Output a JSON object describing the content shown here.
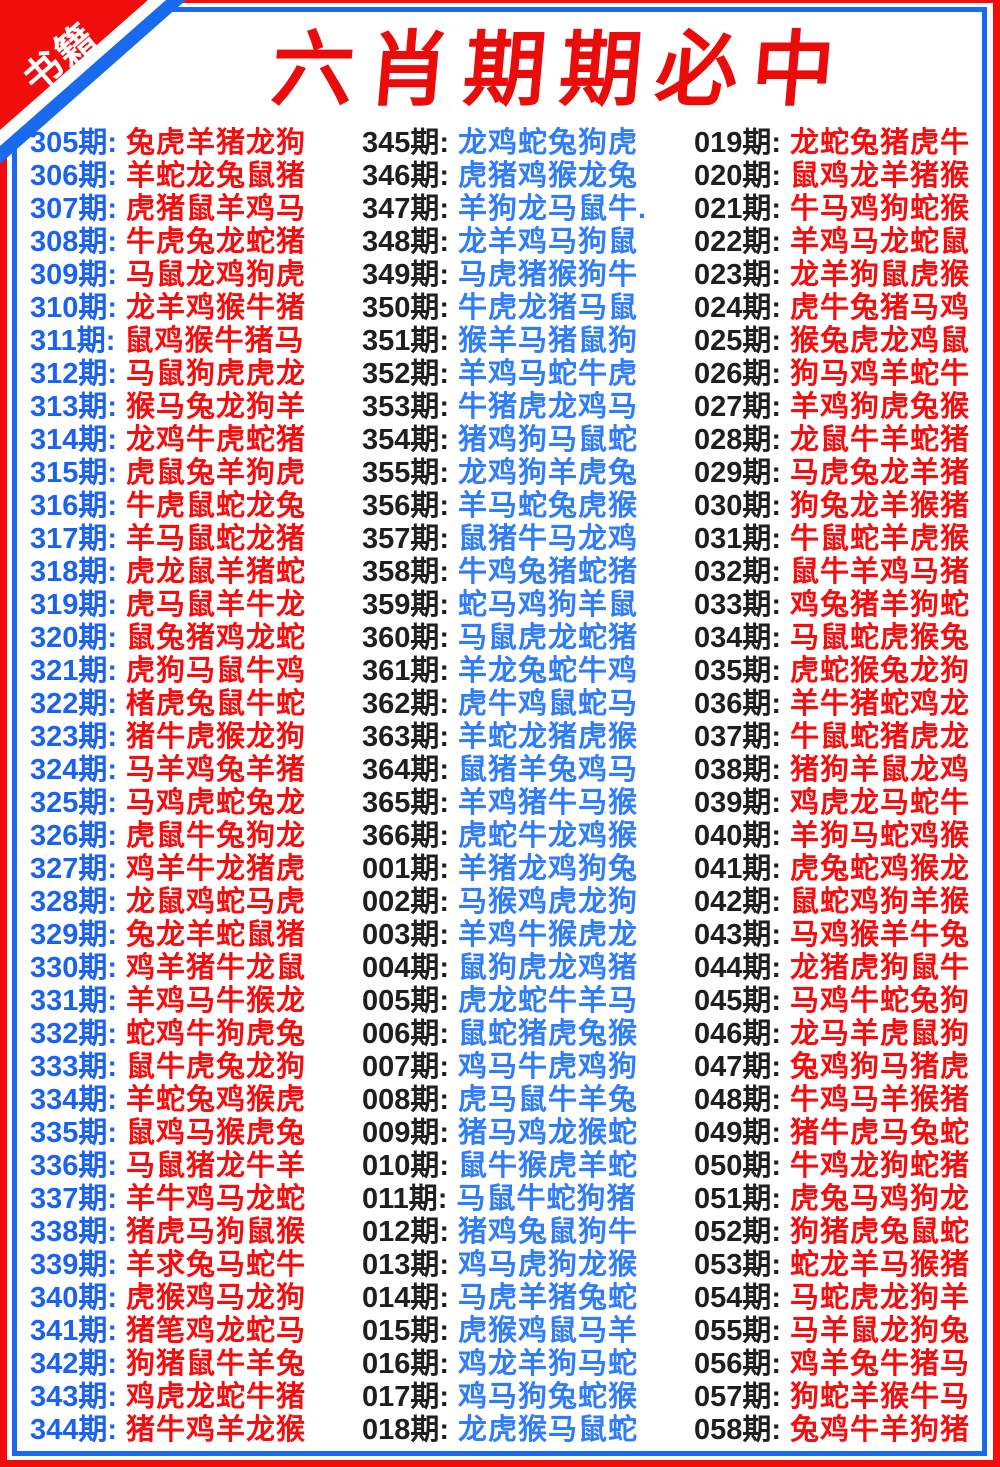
{
  "corner_badge": {
    "label": "书籍"
  },
  "title": "六肖期期必中",
  "colors": {
    "outer_border_red": "#f20d0d",
    "inner_border_blue": "#1a6af0",
    "title_red": "#ea0b0b",
    "badge_background": "#f20d0d",
    "badge_text": "#ffffff",
    "period_blue": "#1b63ef",
    "period_black": "#1f1f1f",
    "animal_red": "#f70d0d",
    "animal_blue": "#2f7dfb"
  },
  "columns": [
    {
      "name": "column-1",
      "label_color": "#1b63ef",
      "animal_color": "#f70d0d",
      "rows": [
        {
          "period": "305期:",
          "animals": "兔虎羊猪龙狗"
        },
        {
          "period": "306期:",
          "animals": "羊蛇龙兔鼠猪"
        },
        {
          "period": "307期:",
          "animals": "虎猪鼠羊鸡马"
        },
        {
          "period": "308期:",
          "animals": "牛虎兔龙蛇猪"
        },
        {
          "period": "309期:",
          "animals": "马鼠龙鸡狗虎"
        },
        {
          "period": "310期:",
          "animals": "龙羊鸡猴牛猪"
        },
        {
          "period": "311期:",
          "animals": "鼠鸡猴牛猪马"
        },
        {
          "period": "312期:",
          "animals": "马鼠狗虎虎龙"
        },
        {
          "period": "313期:",
          "animals": "猴马兔龙狗羊"
        },
        {
          "period": "314期:",
          "animals": "龙鸡牛虎蛇猪"
        },
        {
          "period": "315期:",
          "animals": "虎鼠兔羊狗虎"
        },
        {
          "period": "316期:",
          "animals": "牛虎鼠蛇龙兔"
        },
        {
          "period": "317期:",
          "animals": "羊马鼠蛇龙猪"
        },
        {
          "period": "318期:",
          "animals": "虎龙鼠羊猪蛇"
        },
        {
          "period": "319期:",
          "animals": "虎马鼠羊牛龙"
        },
        {
          "period": "320期:",
          "animals": "鼠兔猪鸡龙蛇"
        },
        {
          "period": "321期:",
          "animals": "虎狗马鼠牛鸡"
        },
        {
          "period": "322期:",
          "animals": "楮虎兔鼠牛蛇"
        },
        {
          "period": "323期:",
          "animals": "猪牛虎猴龙狗"
        },
        {
          "period": "324期:",
          "animals": "马羊鸡兔羊猪"
        },
        {
          "period": "325期:",
          "animals": "马鸡虎蛇兔龙"
        },
        {
          "period": "326期:",
          "animals": "虎鼠牛兔狗龙"
        },
        {
          "period": "327期:",
          "animals": "鸡羊牛龙猪虎"
        },
        {
          "period": "328期:",
          "animals": "龙鼠鸡蛇马虎"
        },
        {
          "period": "329期:",
          "animals": "兔龙羊蛇鼠猪"
        },
        {
          "period": "330期:",
          "animals": "鸡羊猪牛龙鼠"
        },
        {
          "period": "331期:",
          "animals": "羊鸡马牛猴龙"
        },
        {
          "period": "332期:",
          "animals": "蛇鸡牛狗虎兔"
        },
        {
          "period": "333期:",
          "animals": "鼠牛虎兔龙狗"
        },
        {
          "period": "334期:",
          "animals": "羊蛇兔鸡猴虎"
        },
        {
          "period": "335期:",
          "animals": "鼠鸡马猴虎兔"
        },
        {
          "period": "336期:",
          "animals": "马鼠猪龙牛羊"
        },
        {
          "period": "337期:",
          "animals": "羊牛鸡马龙蛇"
        },
        {
          "period": "338期:",
          "animals": "猪虎马狗鼠猴"
        },
        {
          "period": "339期:",
          "animals": "羊求兔马蛇牛"
        },
        {
          "period": "340期:",
          "animals": "虎猴鸡马龙狗"
        },
        {
          "period": "341期:",
          "animals": "猪笔鸡龙蛇马"
        },
        {
          "period": "342期:",
          "animals": "狗猪鼠牛羊兔"
        },
        {
          "period": "343期:",
          "animals": "鸡虎龙蛇牛猪"
        },
        {
          "period": "344期:",
          "animals": "猪牛鸡羊龙猴"
        }
      ]
    },
    {
      "name": "column-2",
      "label_color": "#1f1f1f",
      "animal_color": "#2f7dfb",
      "rows": [
        {
          "period": "345期:",
          "animals": "龙鸡蛇兔狗虎"
        },
        {
          "period": "346期:",
          "animals": "虎猪鸡猴龙兔"
        },
        {
          "period": "347期:",
          "animals": "羊狗龙马鼠牛."
        },
        {
          "period": "348期:",
          "animals": "龙羊鸡马狗鼠"
        },
        {
          "period": "349期:",
          "animals": "马虎猪猴狗牛"
        },
        {
          "period": "350期:",
          "animals": "牛虎龙猪马鼠"
        },
        {
          "period": "351期:",
          "animals": "猴羊马猪鼠狗"
        },
        {
          "period": "352期:",
          "animals": "羊鸡马蛇牛虎"
        },
        {
          "period": "353期:",
          "animals": "牛猪虎龙鸡马"
        },
        {
          "period": "354期:",
          "animals": "猪鸡狗马鼠蛇"
        },
        {
          "period": "355期:",
          "animals": "龙鸡狗羊虎兔"
        },
        {
          "period": "356期:",
          "animals": "羊马蛇兔虎猴"
        },
        {
          "period": "357期:",
          "animals": "鼠猪牛马龙鸡"
        },
        {
          "period": "358期:",
          "animals": "牛鸡兔猪蛇猪"
        },
        {
          "period": "359期:",
          "animals": "蛇马鸡狗羊鼠"
        },
        {
          "period": "360期:",
          "animals": "马鼠虎龙蛇猪"
        },
        {
          "period": "361期:",
          "animals": "羊龙兔蛇牛鸡"
        },
        {
          "period": "362期:",
          "animals": "虎牛鸡鼠蛇马"
        },
        {
          "period": "363期:",
          "animals": "羊蛇龙猪虎猴"
        },
        {
          "period": "364期:",
          "animals": "鼠猪羊兔鸡马"
        },
        {
          "period": "365期:",
          "animals": "羊鸡猪牛马猴"
        },
        {
          "period": "366期:",
          "animals": "虎蛇牛龙鸡猴"
        },
        {
          "period": "001期:",
          "animals": "羊猪龙鸡狗兔"
        },
        {
          "period": "002期:",
          "animals": "马猴鸡虎龙狗"
        },
        {
          "period": "003期:",
          "animals": "羊鸡牛猴虎龙"
        },
        {
          "period": "004期:",
          "animals": "鼠狗虎龙鸡猪"
        },
        {
          "period": "005期:",
          "animals": "虎龙蛇牛羊马"
        },
        {
          "period": "006期:",
          "animals": "鼠蛇猪虎兔猴"
        },
        {
          "period": "007期:",
          "animals": "鸡马牛虎鸡狗"
        },
        {
          "period": "008期:",
          "animals": "虎马鼠牛羊兔"
        },
        {
          "period": "009期:",
          "animals": "猪马鸡龙猴蛇"
        },
        {
          "period": "010期:",
          "animals": "鼠牛猴虎羊蛇"
        },
        {
          "period": "011期:",
          "animals": "马鼠牛蛇狗猪"
        },
        {
          "period": "012期:",
          "animals": "猪鸡兔鼠狗牛"
        },
        {
          "period": "013期:",
          "animals": "鸡马虎狗龙猴"
        },
        {
          "period": "014期:",
          "animals": "马虎羊猪兔蛇"
        },
        {
          "period": "015期:",
          "animals": "虎猴鸡鼠马羊"
        },
        {
          "period": "016期:",
          "animals": "鸡龙羊狗马蛇"
        },
        {
          "period": "017期:",
          "animals": "鸡马狗兔蛇猴"
        },
        {
          "period": "018期:",
          "animals": "龙虎猴马鼠蛇"
        }
      ]
    },
    {
      "name": "column-3",
      "label_color": "#1f1f1f",
      "animal_color": "#f70d0d",
      "rows": [
        {
          "period": "019期:",
          "animals": "龙蛇兔猪虎牛"
        },
        {
          "period": "020期:",
          "animals": "鼠鸡龙羊猪猴"
        },
        {
          "period": "021期:",
          "animals": "牛马鸡狗蛇猴"
        },
        {
          "period": "022期:",
          "animals": "羊鸡马龙蛇鼠"
        },
        {
          "period": "023期:",
          "animals": "龙羊狗鼠虎猴"
        },
        {
          "period": "024期:",
          "animals": "虎牛兔猪马鸡"
        },
        {
          "period": "025期:",
          "animals": "猴兔虎龙鸡鼠"
        },
        {
          "period": "026期:",
          "animals": "狗马鸡羊蛇牛"
        },
        {
          "period": "027期:",
          "animals": "羊鸡狗虎兔猴"
        },
        {
          "period": "028期:",
          "animals": "龙鼠牛羊蛇猪"
        },
        {
          "period": "029期:",
          "animals": "马虎兔龙羊猪"
        },
        {
          "period": "030期:",
          "animals": "狗兔龙羊猴猪"
        },
        {
          "period": "031期:",
          "animals": "牛鼠蛇羊虎猴"
        },
        {
          "period": "032期:",
          "animals": "鼠牛羊鸡马猪"
        },
        {
          "period": "033期:",
          "animals": "鸡兔猪羊狗蛇"
        },
        {
          "period": "034期:",
          "animals": "马鼠蛇虎猴兔"
        },
        {
          "period": "035期:",
          "animals": "虎蛇猴兔龙狗"
        },
        {
          "period": "036期:",
          "animals": "羊牛猪蛇鸡龙"
        },
        {
          "period": "037期:",
          "animals": "牛鼠蛇猪虎龙"
        },
        {
          "period": "038期:",
          "animals": "猪狗羊鼠龙鸡"
        },
        {
          "period": "039期:",
          "animals": "鸡虎龙马蛇牛"
        },
        {
          "period": "040期:",
          "animals": "羊狗马蛇鸡猴"
        },
        {
          "period": "041期:",
          "animals": "虎兔蛇鸡猴龙"
        },
        {
          "period": "042期:",
          "animals": "鼠蛇鸡狗羊猴"
        },
        {
          "period": "043期:",
          "animals": "马鸡猴羊牛兔"
        },
        {
          "period": "044期:",
          "animals": "龙猪虎狗鼠牛"
        },
        {
          "period": "045期:",
          "animals": "马鸡牛蛇兔狗"
        },
        {
          "period": "046期:",
          "animals": "龙马羊虎鼠狗"
        },
        {
          "period": "047期:",
          "animals": "兔鸡狗马猪虎"
        },
        {
          "period": "048期:",
          "animals": "牛鸡马羊猴猪"
        },
        {
          "period": "049期:",
          "animals": "猪牛虎马兔蛇"
        },
        {
          "period": "050期:",
          "animals": "牛鸡龙狗蛇猪"
        },
        {
          "period": "051期:",
          "animals": "虎兔马鸡狗龙"
        },
        {
          "period": "052期:",
          "animals": "狗猪虎兔鼠蛇"
        },
        {
          "period": "053期:",
          "animals": "蛇龙羊马猴猪"
        },
        {
          "period": "054期:",
          "animals": "马蛇虎龙狗羊"
        },
        {
          "period": "055期:",
          "animals": "马羊鼠龙狗兔"
        },
        {
          "period": "056期:",
          "animals": "鸡羊兔牛猪马"
        },
        {
          "period": "057期:",
          "animals": "狗蛇羊猴牛马"
        },
        {
          "period": "058期:",
          "animals": "兔鸡牛羊狗猪"
        }
      ]
    }
  ]
}
